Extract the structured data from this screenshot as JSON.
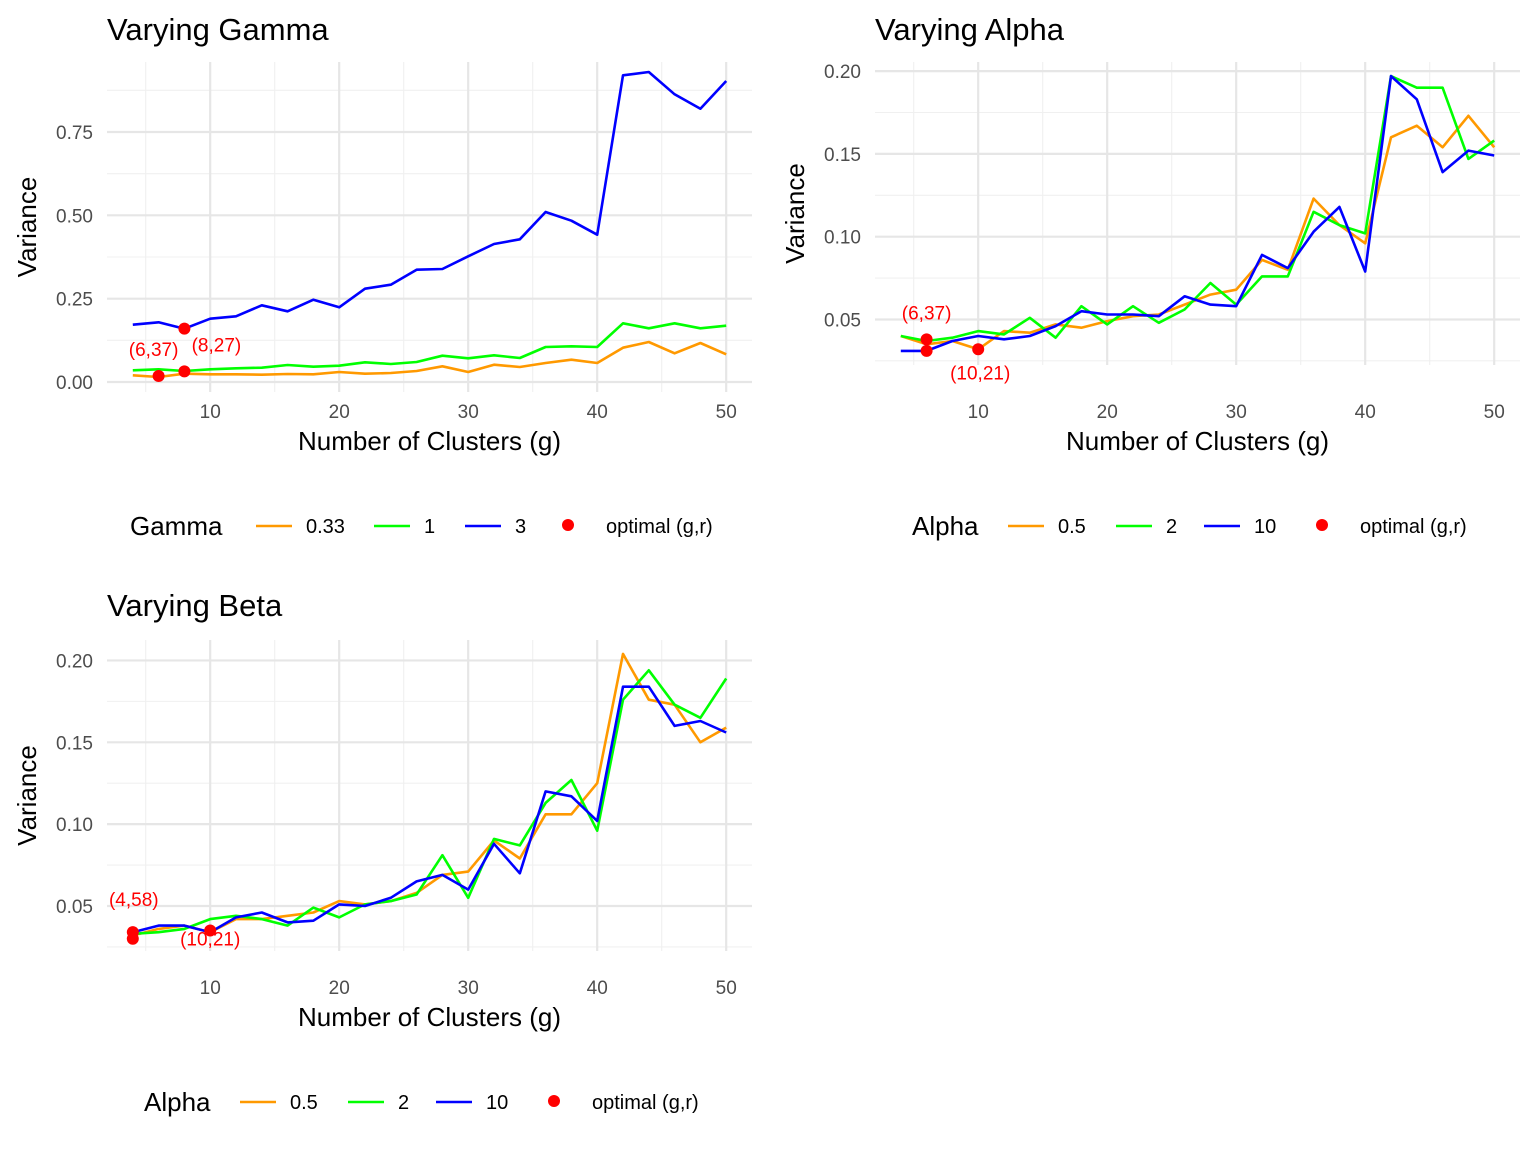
{
  "annotation_color": "#ff0000",
  "chart_data": [
    {
      "type": "line",
      "title": "Varying Gamma",
      "xlabel": "Number of Clusters (g)",
      "ylabel": "Variance",
      "xlim": [
        2,
        52
      ],
      "ylim": [
        -0.03,
        0.96
      ],
      "x_ticks": [
        10,
        20,
        30,
        40,
        50
      ],
      "y_ticks": [
        0.0,
        0.25,
        0.5,
        0.75
      ],
      "y_tick_labels": [
        "0.00",
        "0.25",
        "0.50",
        "0.75"
      ],
      "grid": true,
      "legend_position": "bottom",
      "legend_title": "Gamma",
      "x": [
        4,
        6,
        8,
        10,
        12,
        14,
        16,
        18,
        20,
        22,
        24,
        26,
        28,
        30,
        32,
        34,
        36,
        38,
        40,
        42,
        44,
        46,
        48,
        50
      ],
      "series": [
        {
          "name": "0.33",
          "color": "#ff9900",
          "values": [
            0.02,
            0.015,
            0.025,
            0.023,
            0.023,
            0.022,
            0.024,
            0.023,
            0.03,
            0.025,
            0.027,
            0.033,
            0.047,
            0.03,
            0.052,
            0.045,
            0.057,
            0.067,
            0.057,
            0.103,
            0.12,
            0.086,
            0.117,
            0.083
          ]
        },
        {
          "name": "1",
          "color": "#00ff00",
          "values": [
            0.035,
            0.038,
            0.033,
            0.038,
            0.041,
            0.043,
            0.051,
            0.046,
            0.049,
            0.059,
            0.054,
            0.06,
            0.079,
            0.071,
            0.08,
            0.072,
            0.105,
            0.107,
            0.105,
            0.176,
            0.161,
            0.176,
            0.161,
            0.169
          ]
        },
        {
          "name": "3",
          "color": "#0000ff",
          "values": [
            0.172,
            0.179,
            0.16,
            0.19,
            0.197,
            0.23,
            0.212,
            0.247,
            0.224,
            0.28,
            0.292,
            0.337,
            0.339,
            0.377,
            0.414,
            0.428,
            0.51,
            0.484,
            0.442,
            0.92,
            0.93,
            0.863,
            0.82,
            0.903
          ]
        }
      ],
      "optimal_points": [
        {
          "label": "(6,37)",
          "x": 6,
          "y": 0.018
        },
        {
          "label": "(8,27)",
          "x": 8,
          "y": 0.032
        },
        {
          "x": 8,
          "y": 0.16
        }
      ],
      "legend_items": [
        "0.33",
        "1",
        "3",
        "optimal (g,r)"
      ]
    },
    {
      "type": "line",
      "title": "Varying Alpha",
      "xlabel": "Number of Clusters (g)",
      "ylabel": "Variance",
      "xlim": [
        2,
        52
      ],
      "ylim": [
        0.0225,
        0.2055
      ],
      "x_ticks": [
        10,
        20,
        30,
        40,
        50
      ],
      "y_ticks": [
        0.05,
        0.1,
        0.15,
        0.2
      ],
      "y_tick_labels": [
        "0.05",
        "0.10",
        "0.15",
        "0.20"
      ],
      "grid": true,
      "legend_position": "bottom",
      "legend_title": "Alpha",
      "x": [
        4,
        6,
        8,
        10,
        12,
        14,
        16,
        18,
        20,
        22,
        24,
        26,
        28,
        30,
        32,
        34,
        36,
        38,
        40,
        42,
        44,
        46,
        48,
        50
      ],
      "series": [
        {
          "name": "0.5",
          "color": "#ff9900",
          "values": [
            0.04,
            0.035,
            0.037,
            0.032,
            0.043,
            0.042,
            0.047,
            0.045,
            0.049,
            0.052,
            0.053,
            0.059,
            0.065,
            0.068,
            0.086,
            0.08,
            0.123,
            0.107,
            0.096,
            0.16,
            0.167,
            0.154,
            0.173,
            0.154
          ]
        },
        {
          "name": "2",
          "color": "#00ff00",
          "values": [
            0.04,
            0.037,
            0.039,
            0.043,
            0.041,
            0.051,
            0.039,
            0.058,
            0.047,
            0.058,
            0.048,
            0.056,
            0.072,
            0.059,
            0.076,
            0.076,
            0.115,
            0.107,
            0.102,
            0.197,
            0.19,
            0.19,
            0.147,
            0.158
          ]
        },
        {
          "name": "10",
          "color": "#0000ff",
          "values": [
            0.031,
            0.031,
            0.037,
            0.04,
            0.038,
            0.04,
            0.046,
            0.055,
            0.053,
            0.053,
            0.052,
            0.064,
            0.059,
            0.058,
            0.089,
            0.081,
            0.103,
            0.118,
            0.079,
            0.197,
            0.183,
            0.139,
            0.152,
            0.149
          ]
        }
      ],
      "optimal_points": [
        {
          "label": "(6,37)",
          "x": 6,
          "y": 0.038
        },
        {
          "x": 6,
          "y": 0.031
        },
        {
          "label": "(10,21)",
          "x": 10,
          "y": 0.032
        }
      ],
      "legend_items": [
        "0.5",
        "2",
        "10",
        "optimal (g,r)"
      ]
    },
    {
      "type": "line",
      "title": "Varying Beta",
      "xlabel": "Number of Clusters (g)",
      "ylabel": "Variance",
      "xlim": [
        2,
        52
      ],
      "ylim": [
        0.0225,
        0.2125
      ],
      "x_ticks": [
        10,
        20,
        30,
        40,
        50
      ],
      "y_ticks": [
        0.05,
        0.1,
        0.15,
        0.2
      ],
      "y_tick_labels": [
        "0.05",
        "0.10",
        "0.15",
        "0.20"
      ],
      "grid": true,
      "legend_position": "bottom",
      "legend_title": "Alpha",
      "x": [
        4,
        6,
        8,
        10,
        12,
        14,
        16,
        18,
        20,
        22,
        24,
        26,
        28,
        30,
        32,
        34,
        36,
        38,
        40,
        42,
        44,
        46,
        48,
        50
      ],
      "series": [
        {
          "name": "0.5",
          "color": "#ff9900",
          "values": [
            0.032,
            0.036,
            0.038,
            0.034,
            0.042,
            0.042,
            0.044,
            0.046,
            0.053,
            0.051,
            0.053,
            0.058,
            0.069,
            0.071,
            0.09,
            0.079,
            0.106,
            0.106,
            0.125,
            0.204,
            0.176,
            0.173,
            0.15,
            0.159
          ]
        },
        {
          "name": "2",
          "color": "#00ff00",
          "values": [
            0.033,
            0.034,
            0.036,
            0.042,
            0.044,
            0.042,
            0.038,
            0.049,
            0.043,
            0.051,
            0.053,
            0.057,
            0.081,
            0.055,
            0.091,
            0.087,
            0.113,
            0.127,
            0.096,
            0.176,
            0.194,
            0.173,
            0.165,
            0.189
          ]
        },
        {
          "name": "10",
          "color": "#0000ff",
          "values": [
            0.034,
            0.038,
            0.038,
            0.034,
            0.043,
            0.046,
            0.04,
            0.041,
            0.051,
            0.05,
            0.055,
            0.065,
            0.069,
            0.06,
            0.088,
            0.07,
            0.12,
            0.117,
            0.102,
            0.184,
            0.184,
            0.16,
            0.163,
            0.156
          ]
        }
      ],
      "optimal_points": [
        {
          "label": "(4,58)",
          "x": 4,
          "y": 0.034
        },
        {
          "x": 4,
          "y": 0.03
        },
        {
          "label": "(10,21)",
          "x": 10,
          "y": 0.035
        }
      ],
      "legend_items": [
        "0.5",
        "2",
        "10",
        "optimal (g,r)"
      ]
    }
  ]
}
